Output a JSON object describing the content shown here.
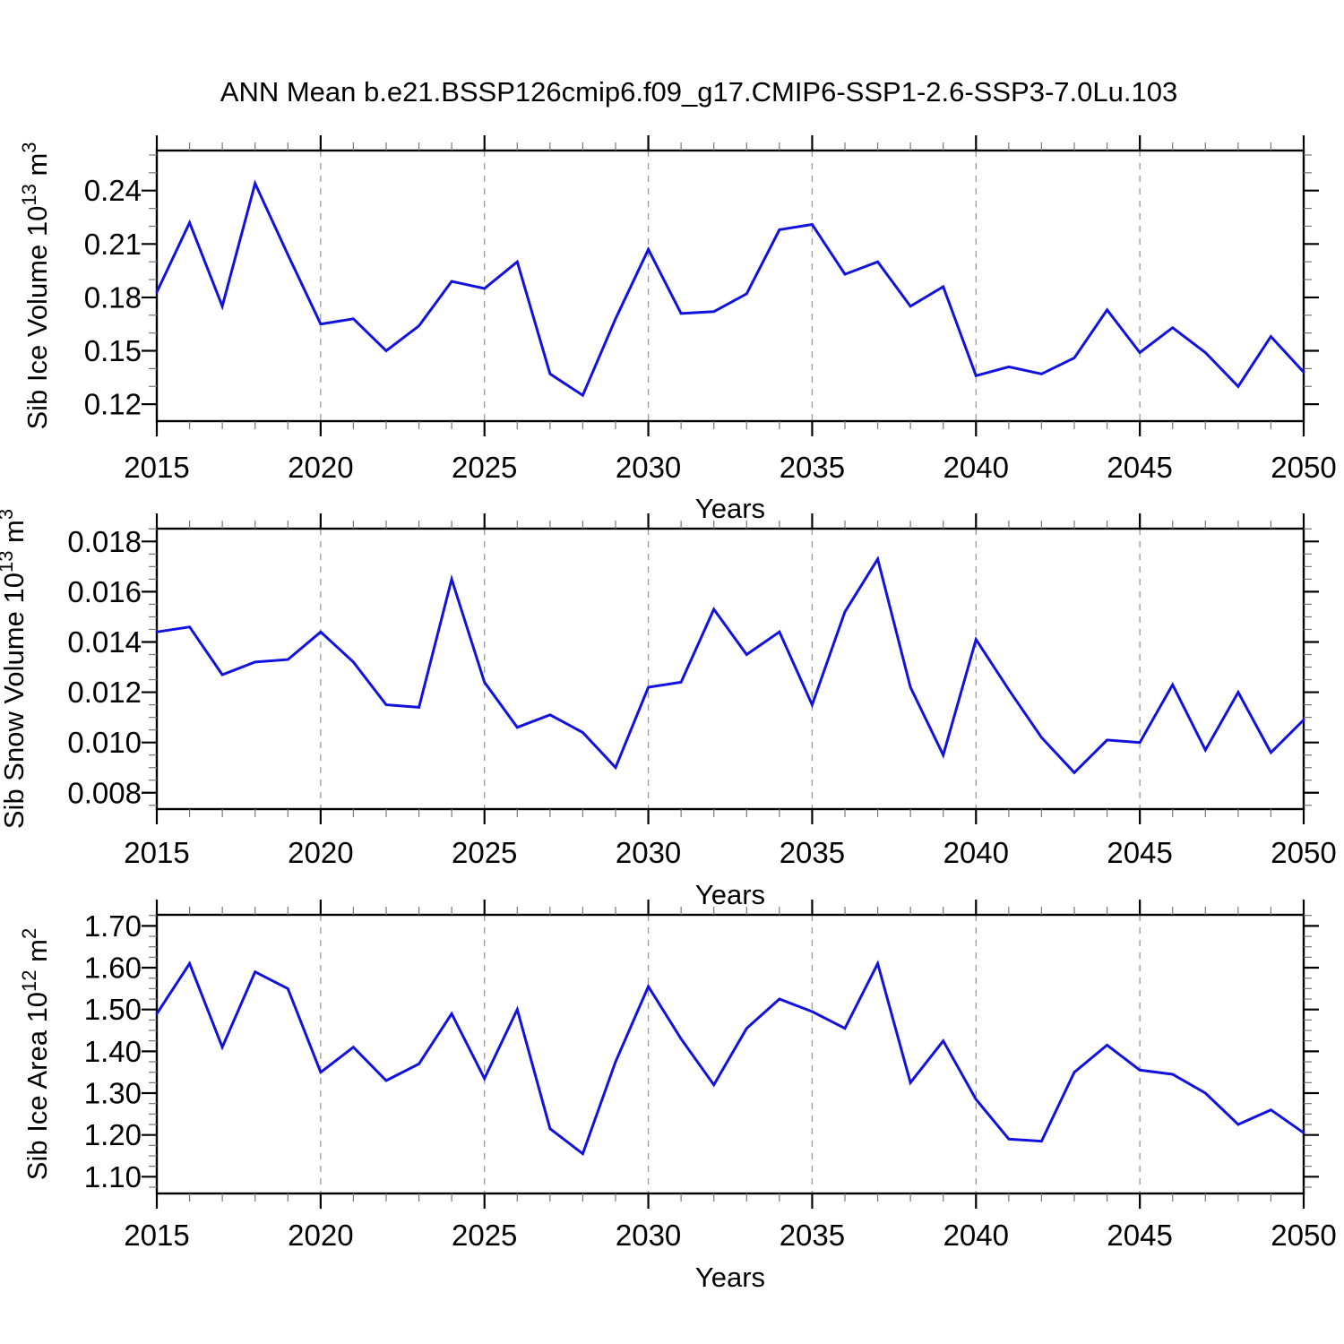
{
  "title": "ANN Mean b.e21.BSSP126cmip6.f09_g17.CMIP6-SSP1-2.6-SSP3-7.0Lu.103",
  "colors": {
    "line": "#1212e0",
    "axis": "#000000",
    "grid": "#999999",
    "minor_tick": "#777777",
    "background": "#ffffff"
  },
  "chart_data": [
    {
      "type": "line",
      "id": "ice-volume",
      "ylabel": "Sib Ice Volume 10^13 m^3",
      "ylabel_parts": [
        {
          "t": "Sib Ice Volume 10"
        },
        {
          "t": "13",
          "sup": true
        },
        {
          "t": " m"
        },
        {
          "t": "3",
          "sup": true
        }
      ],
      "xlabel": "Years",
      "x": [
        2015,
        2016,
        2017,
        2018,
        2019,
        2020,
        2021,
        2022,
        2023,
        2024,
        2025,
        2026,
        2027,
        2028,
        2029,
        2030,
        2031,
        2032,
        2033,
        2034,
        2035,
        2036,
        2037,
        2038,
        2039,
        2040,
        2041,
        2042,
        2043,
        2044,
        2045,
        2046,
        2047,
        2048,
        2049,
        2050
      ],
      "values": [
        0.183,
        0.222,
        0.175,
        0.244,
        0.204,
        0.165,
        0.168,
        0.15,
        0.164,
        0.189,
        0.185,
        0.2,
        0.137,
        0.125,
        0.168,
        0.207,
        0.171,
        0.172,
        0.182,
        0.218,
        0.221,
        0.193,
        0.2,
        0.175,
        0.186,
        0.136,
        0.141,
        0.137,
        0.146,
        0.173,
        0.149,
        0.163,
        0.149,
        0.13,
        0.158,
        0.138
      ],
      "xlim": [
        2015,
        2050
      ],
      "ylim": [
        0.1105,
        0.2625
      ],
      "yticks": [
        0.12,
        0.15,
        0.18,
        0.21,
        0.24
      ],
      "ytick_labels": [
        "0.12",
        "0.15",
        "0.18",
        "0.21",
        "0.24"
      ],
      "yminor_step": 0.01,
      "xticks": [
        2015,
        2020,
        2025,
        2030,
        2035,
        2040,
        2045,
        2050
      ],
      "xtick_labels": [
        "2015",
        "2020",
        "2025",
        "2030",
        "2035",
        "2040",
        "2045",
        "2050"
      ],
      "xminor_step": 1,
      "grid_x": [
        2020,
        2025,
        2030,
        2035,
        2040,
        2045
      ],
      "grid": "vertical-dashed",
      "legend": "none"
    },
    {
      "type": "line",
      "id": "snow-volume",
      "ylabel": "Sib Snow Volume 10^13 m^3",
      "ylabel_parts": [
        {
          "t": "Sib Snow Volume 10"
        },
        {
          "t": "13",
          "sup": true
        },
        {
          "t": " m"
        },
        {
          "t": "3",
          "sup": true
        }
      ],
      "xlabel": "Years",
      "x": [
        2015,
        2016,
        2017,
        2018,
        2019,
        2020,
        2021,
        2022,
        2023,
        2024,
        2025,
        2026,
        2027,
        2028,
        2029,
        2030,
        2031,
        2032,
        2033,
        2034,
        2035,
        2036,
        2037,
        2038,
        2039,
        2040,
        2041,
        2042,
        2043,
        2044,
        2045,
        2046,
        2047,
        2048,
        2049,
        2050
      ],
      "values": [
        0.0144,
        0.0146,
        0.0127,
        0.0132,
        0.0133,
        0.0144,
        0.0132,
        0.0115,
        0.0114,
        0.0165,
        0.0124,
        0.0106,
        0.0111,
        0.0104,
        0.009,
        0.0122,
        0.0124,
        0.0153,
        0.0135,
        0.0144,
        0.0115,
        0.0152,
        0.0173,
        0.0122,
        0.0095,
        0.0141,
        0.0121,
        0.0102,
        0.0088,
        0.0101,
        0.01,
        0.0123,
        0.0097,
        0.012,
        0.0096,
        0.0109
      ],
      "xlim": [
        2015,
        2050
      ],
      "ylim": [
        0.00735,
        0.01851
      ],
      "yticks": [
        0.008,
        0.01,
        0.012,
        0.014,
        0.016,
        0.018
      ],
      "ytick_labels": [
        "0.008",
        "0.010",
        "0.012",
        "0.014",
        "0.016",
        "0.018"
      ],
      "yminor_step": 0.0005,
      "xticks": [
        2015,
        2020,
        2025,
        2030,
        2035,
        2040,
        2045,
        2050
      ],
      "xtick_labels": [
        "2015",
        "2020",
        "2025",
        "2030",
        "2035",
        "2040",
        "2045",
        "2050"
      ],
      "xminor_step": 1,
      "grid_x": [
        2020,
        2025,
        2030,
        2035,
        2040,
        2045
      ],
      "grid": "vertical-dashed",
      "legend": "none"
    },
    {
      "type": "line",
      "id": "ice-area",
      "ylabel": "Sib Ice Area 10^12 m^2",
      "ylabel_parts": [
        {
          "t": "Sib Ice Area 10"
        },
        {
          "t": "12",
          "sup": true
        },
        {
          "t": " m"
        },
        {
          "t": "2",
          "sup": true
        }
      ],
      "xlabel": "Years",
      "x": [
        2015,
        2016,
        2017,
        2018,
        2019,
        2020,
        2021,
        2022,
        2023,
        2024,
        2025,
        2026,
        2027,
        2028,
        2029,
        2030,
        2031,
        2032,
        2033,
        2034,
        2035,
        2036,
        2037,
        2038,
        2039,
        2040,
        2041,
        2042,
        2043,
        2044,
        2045,
        2046,
        2047,
        2048,
        2049,
        2050
      ],
      "values": [
        1.49,
        1.61,
        1.41,
        1.59,
        1.55,
        1.35,
        1.41,
        1.33,
        1.37,
        1.49,
        1.335,
        1.5,
        1.215,
        1.155,
        1.375,
        1.555,
        1.43,
        1.32,
        1.455,
        1.525,
        1.495,
        1.455,
        1.61,
        1.325,
        1.425,
        1.285,
        1.19,
        1.185,
        1.35,
        1.415,
        1.355,
        1.345,
        1.3,
        1.225,
        1.26,
        1.205
      ],
      "xlim": [
        2015,
        2050
      ],
      "ylim": [
        1.06,
        1.7265
      ],
      "yticks": [
        1.1,
        1.2,
        1.3,
        1.4,
        1.5,
        1.6,
        1.7
      ],
      "ytick_labels": [
        "1.10",
        "1.20",
        "1.30",
        "1.40",
        "1.50",
        "1.60",
        "1.70"
      ],
      "yminor_step": 0.025,
      "xticks": [
        2015,
        2020,
        2025,
        2030,
        2035,
        2040,
        2045,
        2050
      ],
      "xtick_labels": [
        "2015",
        "2020",
        "2025",
        "2030",
        "2035",
        "2040",
        "2045",
        "2050"
      ],
      "xminor_step": 1,
      "grid_x": [
        2020,
        2025,
        2030,
        2035,
        2040,
        2045
      ],
      "grid": "vertical-dashed",
      "legend": "none"
    }
  ]
}
